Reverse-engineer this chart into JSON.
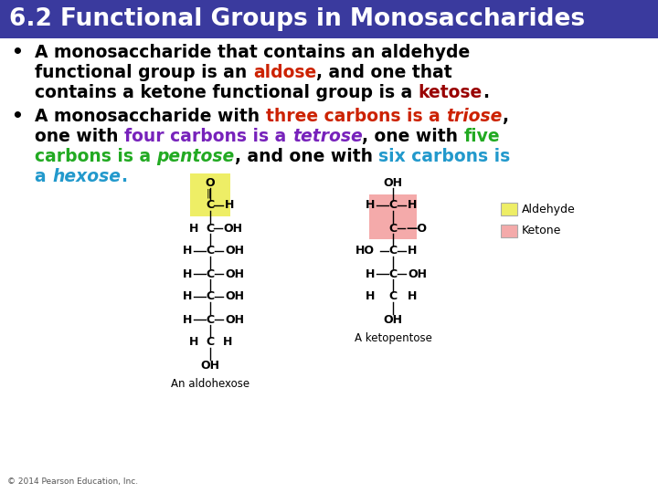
{
  "title": "6.2 Functional Groups in Monosaccharides",
  "title_bg": "#3a3a9e",
  "title_color": "#ffffff",
  "title_fontsize": 19,
  "body_fontsize": 13.5,
  "struct_fontsize": 9,
  "copyright": "© 2014 Pearson Education, Inc.",
  "aldohexose_label": "An aldohexose",
  "ketopentose_label": "A ketopentose",
  "legend_aldehyde": "Aldehyde",
  "legend_ketone": "Ketone",
  "aldehyde_color": "#eeee66",
  "ketone_color": "#f4aaaa",
  "bg_color": "#ffffff",
  "black": "#000000",
  "red_aldose": "#cc2200",
  "dark_red_ketose": "#990000",
  "red_three": "#cc2200",
  "purple_four": "#7722bb",
  "green_five": "#22aa22",
  "blue_six": "#2299cc"
}
